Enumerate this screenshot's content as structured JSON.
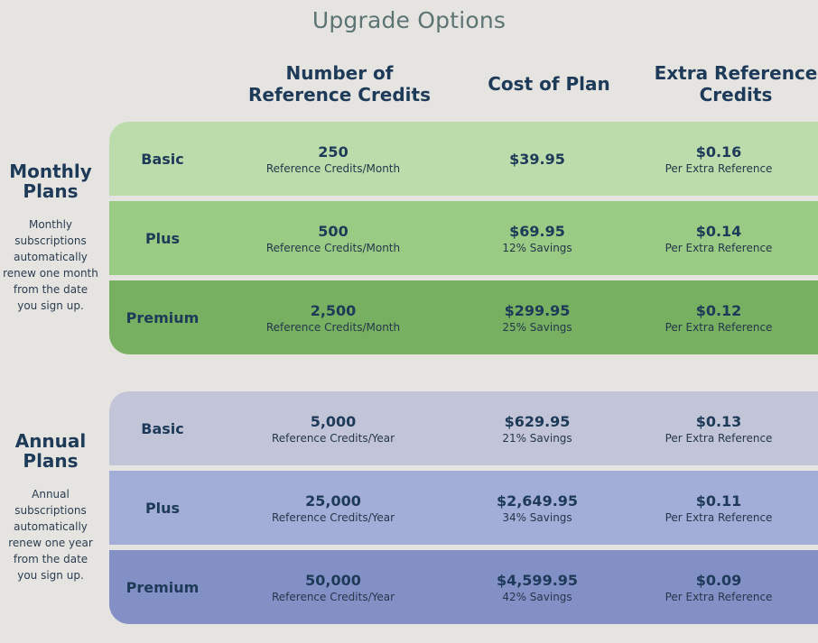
{
  "title": "Upgrade Options",
  "columns": {
    "credits": "Number of Reference Credits",
    "cost": "Cost of Plan",
    "extra": "Extra Reference Credits"
  },
  "monthly": {
    "title": "Monthly Plans",
    "description": "Monthly subscriptions automatically renew one month from the date you sign up.",
    "rows": [
      {
        "label": "Basic",
        "credits": "250",
        "credits_unit": "Reference Credits/Month",
        "cost": "$39.95",
        "savings": "",
        "extra": "$0.16",
        "extra_unit": "Per Extra Reference"
      },
      {
        "label": "Plus",
        "credits": "500",
        "credits_unit": "Reference Credits/Month",
        "cost": "$69.95",
        "savings": "12% Savings",
        "extra": "$0.14",
        "extra_unit": "Per Extra Reference"
      },
      {
        "label": "Premium",
        "credits": "2,500",
        "credits_unit": "Reference Credits/Month",
        "cost": "$299.95",
        "savings": "25% Savings",
        "extra": "$0.12",
        "extra_unit": "Per Extra Reference"
      }
    ]
  },
  "annual": {
    "title": "Annual Plans",
    "description": "Annual subscriptions automatically renew one year from the date you sign up.",
    "rows": [
      {
        "label": "Basic",
        "credits": "5,000",
        "credits_unit": "Reference Credits/Year",
        "cost": "$629.95",
        "savings": "21% Savings",
        "extra": "$0.13",
        "extra_unit": "Per Extra Reference"
      },
      {
        "label": "Plus",
        "credits": "25,000",
        "credits_unit": "Reference Credits/Year",
        "cost": "$2,649.95",
        "savings": "34% Savings",
        "extra": "$0.11",
        "extra_unit": "Per Extra Reference"
      },
      {
        "label": "Premium",
        "credits": "50,000",
        "credits_unit": "Reference Credits/Year",
        "cost": "$4,599.95",
        "savings": "42% Savings",
        "extra": "$0.09",
        "extra_unit": "Per Extra Reference"
      }
    ]
  },
  "colors": {
    "background": "#e6e4e1",
    "monthly_basic": "#bddcab",
    "monthly_plus": "#9acb85",
    "monthly_premium": "#78b062",
    "annual_basic": "#c2c4d8",
    "annual_plus": "#a2aed8",
    "annual_premium": "#8290c6",
    "heading_text": "#1d3a58"
  }
}
